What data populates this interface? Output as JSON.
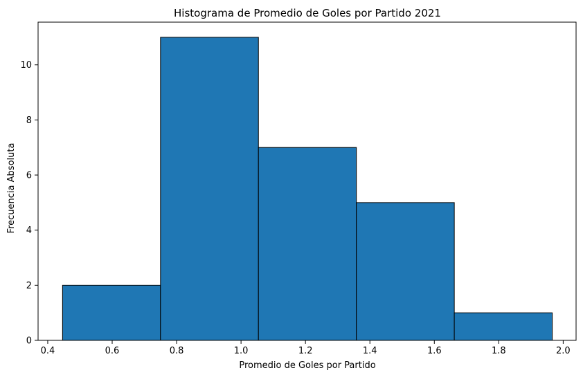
{
  "chart_data": {
    "type": "bar",
    "title": "Histograma de Promedio de Goles por Partido 2021",
    "xlabel": "Promedio de Goles por Partido",
    "ylabel": "Frecuencia Absoluta",
    "bins": [
      {
        "start": 0.446,
        "end": 0.75,
        "count": 2
      },
      {
        "start": 0.75,
        "end": 1.054,
        "count": 11
      },
      {
        "start": 1.054,
        "end": 1.358,
        "count": 7
      },
      {
        "start": 1.358,
        "end": 1.662,
        "count": 5
      },
      {
        "start": 1.662,
        "end": 1.966,
        "count": 1
      }
    ],
    "xlim": [
      0.37,
      2.04
    ],
    "ylim": [
      0,
      11.55
    ],
    "xticks": [
      "0.4",
      "0.6",
      "0.8",
      "1.0",
      "1.2",
      "1.4",
      "1.6",
      "1.8",
      "2.0"
    ],
    "xtick_values": [
      0.4,
      0.6,
      0.8,
      1.0,
      1.2,
      1.4,
      1.6,
      1.8,
      2.0
    ],
    "yticks": [
      "0",
      "2",
      "4",
      "6",
      "8",
      "10"
    ],
    "ytick_values": [
      0,
      2,
      4,
      6,
      8,
      10
    ],
    "grid": false,
    "colors": {
      "bar_fill": "#1f77b4",
      "bar_edge": "#000000"
    }
  }
}
